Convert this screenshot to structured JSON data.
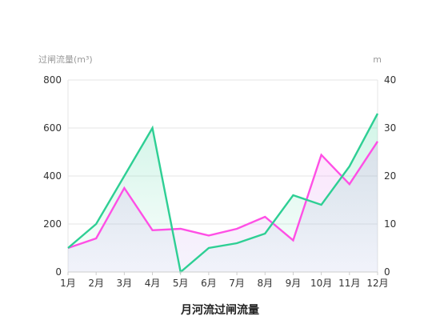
{
  "chart_data": {
    "type": "line",
    "title": "月河流过闸流量",
    "categories": [
      "1月",
      "2月",
      "3月",
      "4月",
      "5月",
      "6月",
      "7月",
      "8月",
      "9月",
      "10月",
      "11月",
      "12月"
    ],
    "y_left": {
      "label": "过闸流量(m³)",
      "ylim": [
        0,
        800
      ],
      "ticks": [
        0,
        200,
        400,
        600,
        800
      ]
    },
    "y_right": {
      "label": "m",
      "ylim": [
        0,
        40
      ],
      "ticks": [
        0,
        10,
        20,
        30,
        40
      ]
    },
    "grid": true,
    "series": [
      {
        "axis": "left",
        "color": "#2ecf94",
        "fill": "#2ecf94",
        "values": [
          100,
          200,
          400,
          600,
          0,
          100,
          120,
          160,
          320,
          280,
          440,
          660
        ]
      },
      {
        "axis": "right",
        "color": "#ff4fe5",
        "fill": "#b89cf0",
        "values": [
          5,
          7,
          17.5,
          8.7,
          9,
          7.6,
          9,
          11.5,
          6.6,
          24.4,
          18.3,
          27.2
        ]
      }
    ]
  }
}
